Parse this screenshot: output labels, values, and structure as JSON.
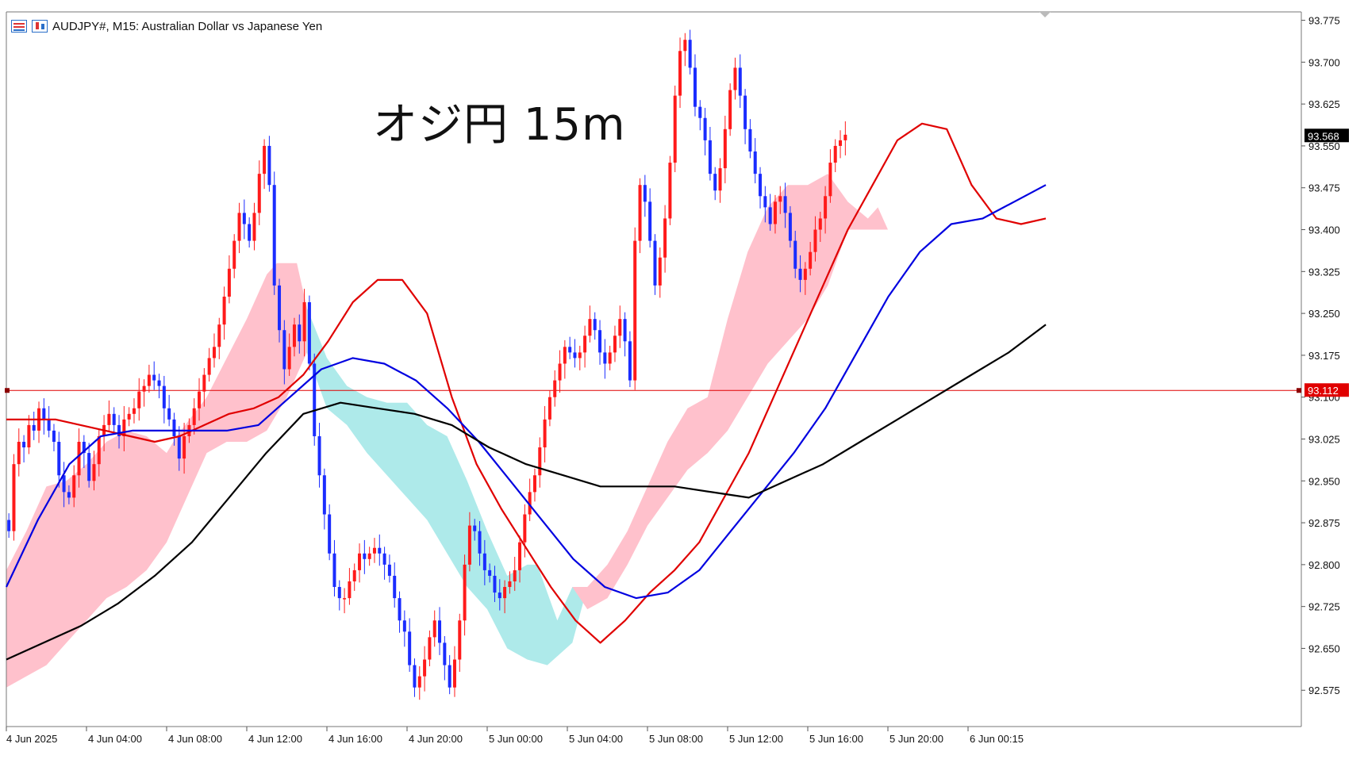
{
  "header": {
    "title": "AUDJPY#, M15:  Australian Dollar vs Japanese Yen",
    "icons": [
      "chart-list-icon",
      "candlestick-chart-icon"
    ]
  },
  "chart_data": {
    "type": "candlestick",
    "symbol": "AUDJPY#",
    "timeframe": "M15",
    "annotation": "オジ円 15m",
    "ylim": [
      92.51,
      93.79
    ],
    "y_ticks": [
      "93.775",
      "93.700",
      "93.625",
      "93.550",
      "93.475",
      "93.400",
      "93.325",
      "93.250",
      "93.175",
      "93.100",
      "93.025",
      "92.950",
      "92.875",
      "92.800",
      "92.725",
      "92.650",
      "92.575"
    ],
    "x_ticks": [
      "4 Jun 2025",
      "4 Jun 04:00",
      "4 Jun 08:00",
      "4 Jun 12:00",
      "4 Jun 16:00",
      "4 Jun 20:00",
      "5 Jun 00:00",
      "5 Jun 04:00",
      "5 Jun 08:00",
      "5 Jun 12:00",
      "5 Jun 16:00",
      "5 Jun 20:00",
      "6 Jun 00:15"
    ],
    "bars_per_tick": 16,
    "candles_close": [
      92.86,
      92.98,
      93.02,
      93.01,
      93.05,
      93.04,
      93.08,
      93.06,
      93.04,
      93.02,
      92.96,
      92.93,
      92.92,
      92.96,
      93.02,
      93.0,
      92.95,
      92.98,
      93.03,
      93.05,
      93.07,
      93.05,
      93.03,
      93.06,
      93.07,
      93.08,
      93.11,
      93.12,
      93.14,
      93.13,
      93.12,
      93.08,
      93.06,
      93.03,
      92.99,
      93.03,
      93.05,
      93.08,
      93.11,
      93.14,
      93.17,
      93.19,
      93.23,
      93.28,
      93.33,
      93.38,
      93.43,
      93.41,
      93.38,
      93.43,
      93.5,
      93.55,
      93.48,
      93.3,
      93.22,
      93.15,
      93.19,
      93.23,
      93.2,
      93.27,
      93.16,
      93.03,
      92.96,
      92.89,
      92.82,
      92.76,
      92.74,
      92.74,
      92.77,
      92.79,
      92.82,
      92.81,
      92.82,
      92.83,
      92.82,
      92.8,
      92.78,
      92.74,
      92.7,
      92.68,
      92.62,
      92.58,
      92.6,
      92.63,
      92.67,
      92.7,
      92.66,
      92.62,
      92.58,
      92.63,
      92.7,
      92.8,
      92.87,
      92.86,
      92.82,
      92.79,
      92.78,
      92.75,
      92.74,
      92.76,
      92.77,
      92.79,
      92.84,
      92.89,
      92.93,
      92.96,
      93.01,
      93.06,
      93.1,
      93.13,
      93.16,
      93.19,
      93.18,
      93.17,
      93.18,
      93.21,
      93.24,
      93.22,
      93.18,
      93.16,
      93.18,
      93.21,
      93.24,
      93.2,
      93.13,
      93.38,
      93.48,
      93.45,
      93.38,
      93.3,
      93.35,
      93.42,
      93.52,
      93.64,
      93.72,
      93.74,
      93.69,
      93.62,
      93.6,
      93.56,
      93.5,
      93.47,
      93.51,
      93.58,
      93.65,
      93.69,
      93.64,
      93.58,
      93.54,
      93.5,
      93.46,
      93.44,
      93.41,
      93.45,
      93.46,
      93.43,
      93.38,
      93.33,
      93.31,
      93.33,
      93.36,
      93.4,
      93.42,
      93.46,
      93.52,
      93.55,
      93.56,
      93.57
    ],
    "x_first": "4 Jun 2025",
    "current_price": "93.568",
    "horizontal_line": "93.112",
    "series": [
      {
        "type": "line",
        "color": "#e00000",
        "values": [
          93.06,
          93.06,
          93.06,
          93.05,
          93.04,
          93.03,
          93.02,
          93.03,
          93.05,
          93.07,
          93.08,
          93.1,
          93.14,
          93.2,
          93.27,
          93.31,
          93.31,
          93.25,
          93.1,
          92.98,
          92.9,
          92.83,
          92.76,
          92.7,
          92.66,
          92.7,
          92.75,
          92.79,
          92.84,
          92.92,
          93.0,
          93.1,
          93.2,
          93.3,
          93.4,
          93.48,
          93.56,
          93.59,
          93.58,
          93.48,
          93.42,
          93.41,
          93.42
        ]
      },
      {
        "type": "line",
        "color": "#0000e0",
        "values": [
          92.76,
          92.88,
          92.98,
          93.03,
          93.04,
          93.04,
          93.04,
          93.04,
          93.05,
          93.1,
          93.15,
          93.17,
          93.16,
          93.13,
          93.08,
          93.02,
          92.95,
          92.88,
          92.81,
          92.76,
          92.74,
          92.75,
          92.79,
          92.86,
          92.93,
          93.0,
          93.08,
          93.18,
          93.28,
          93.36,
          93.41,
          93.42,
          93.45,
          93.48
        ]
      },
      {
        "type": "line",
        "color": "#000000",
        "values": [
          92.63,
          92.66,
          92.69,
          92.73,
          92.78,
          92.84,
          92.92,
          93.0,
          93.07,
          93.09,
          93.08,
          93.07,
          93.05,
          93.01,
          92.98,
          92.96,
          92.94,
          92.94,
          92.94,
          92.93,
          92.92,
          92.95,
          92.98,
          93.02,
          93.06,
          93.1,
          93.14,
          93.18,
          93.23
        ]
      },
      {
        "type": "area",
        "name": "kumo",
        "colors": [
          "#ffc1cc",
          "#aeeaea"
        ]
      }
    ]
  }
}
